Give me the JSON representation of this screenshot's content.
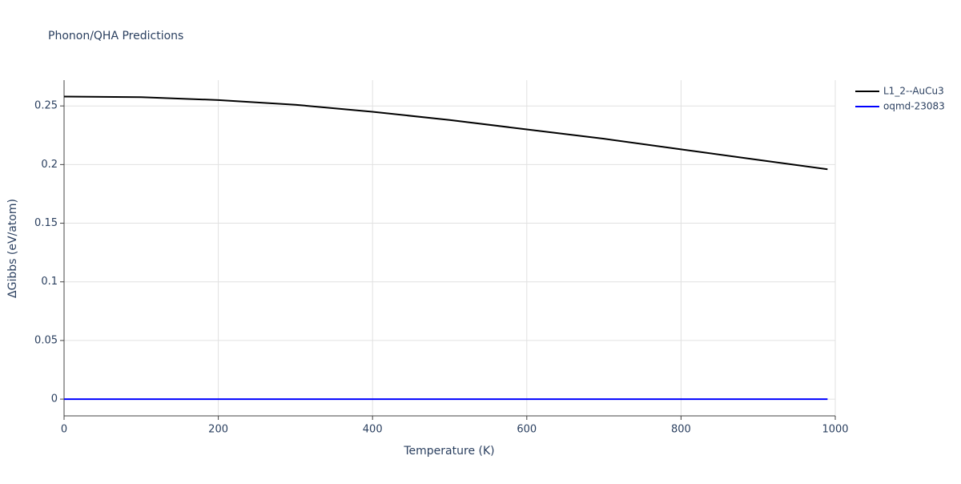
{
  "chart_data": {
    "type": "line",
    "title": "Phonon/QHA Predictions",
    "x_label": "Temperature (K)",
    "y_label": "ΔGibbs (eV/atom)",
    "x": [
      0,
      100,
      200,
      300,
      400,
      500,
      600,
      700,
      800,
      900,
      990
    ],
    "series": [
      {
        "name": "L1_2--AuCu3",
        "color": "#000000",
        "values": [
          0.258,
          0.2575,
          0.255,
          0.251,
          0.245,
          0.238,
          0.23,
          0.222,
          0.213,
          0.204,
          0.196
        ]
      },
      {
        "name": "oqmd-23083",
        "color": "#0000ff",
        "values": [
          0,
          0,
          0,
          0,
          0,
          0,
          0,
          0,
          0,
          0,
          0
        ]
      }
    ],
    "xlim": [
      0,
      1000
    ],
    "xticks": [
      0,
      200,
      400,
      600,
      800,
      1000
    ],
    "ylim": [
      -0.0143,
      0.272
    ],
    "yticks": [
      0,
      0.05,
      0.1,
      0.15,
      0.2,
      0.25
    ],
    "grid": true,
    "legend": "right"
  }
}
